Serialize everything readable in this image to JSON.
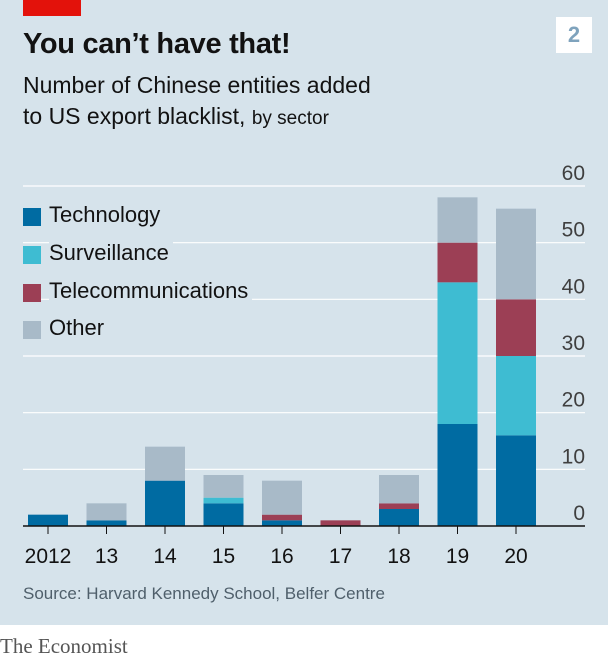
{
  "header": {
    "title": "You can’t have that!",
    "badge": "2",
    "subtitle_main": "Number of Chinese entities added",
    "subtitle_line2": "to US export blacklist,",
    "subtitle_small": "by sector"
  },
  "footer": {
    "source": "Source: Harvard Kennedy School, Belfer Centre",
    "brand": "The Economist"
  },
  "colors": {
    "background": "#d6e3eb",
    "accent_red": "#e3120b",
    "Technology": "#006ba2",
    "Surveillance": "#3ebcd2",
    "Telecommunications": "#9c3f55",
    "Other": "#a8bac8",
    "grid": "#ffffff"
  },
  "chart_data": {
    "type": "bar",
    "stacked": true,
    "title": "You can’t have that!",
    "categories": [
      "2012",
      "13",
      "14",
      "15",
      "16",
      "17",
      "18",
      "19",
      "20"
    ],
    "series": [
      {
        "name": "Technology",
        "values": [
          2,
          1,
          8,
          4,
          1,
          0,
          3,
          18,
          16
        ]
      },
      {
        "name": "Surveillance",
        "values": [
          0,
          0,
          0,
          1,
          0,
          0,
          0,
          25,
          14
        ]
      },
      {
        "name": "Telecommunications",
        "values": [
          0,
          0,
          0,
          0,
          1,
          1,
          1,
          7,
          10
        ]
      },
      {
        "name": "Other",
        "values": [
          0,
          3,
          6,
          4,
          6,
          0,
          5,
          8,
          16
        ]
      }
    ],
    "ylim": [
      0,
      60
    ],
    "yticks": [
      0,
      10,
      20,
      30,
      40,
      50,
      60
    ],
    "y_axis_side": "right",
    "grid": true,
    "legend_position": "top-left"
  }
}
